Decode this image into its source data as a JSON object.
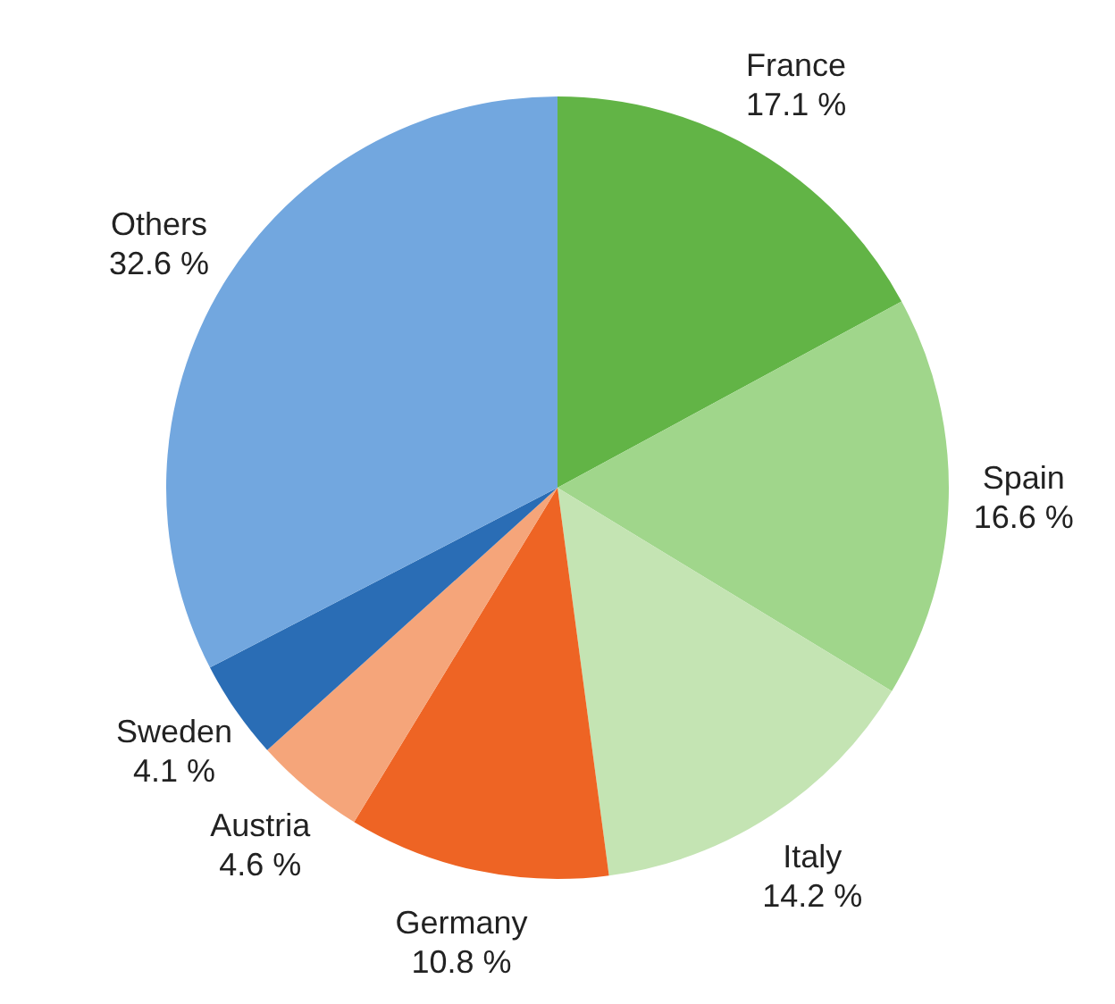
{
  "chart_data": {
    "type": "pie",
    "categories": [
      "France",
      "Spain",
      "Italy",
      "Germany",
      "Austria",
      "Sweden",
      "Others"
    ],
    "values": [
      17.1,
      16.6,
      14.2,
      10.8,
      4.6,
      4.1,
      32.6
    ],
    "value_labels": [
      "17.1 %",
      "16.6 %",
      "14.2 %",
      "10.8 %",
      "4.6 %",
      "4.1 %",
      "32.6 %"
    ],
    "colors": [
      "#62b446",
      "#a0d68b",
      "#c4e4b3",
      "#ee6424",
      "#f5a57a",
      "#2a6db5",
      "#72a7df"
    ],
    "legend": false
  }
}
